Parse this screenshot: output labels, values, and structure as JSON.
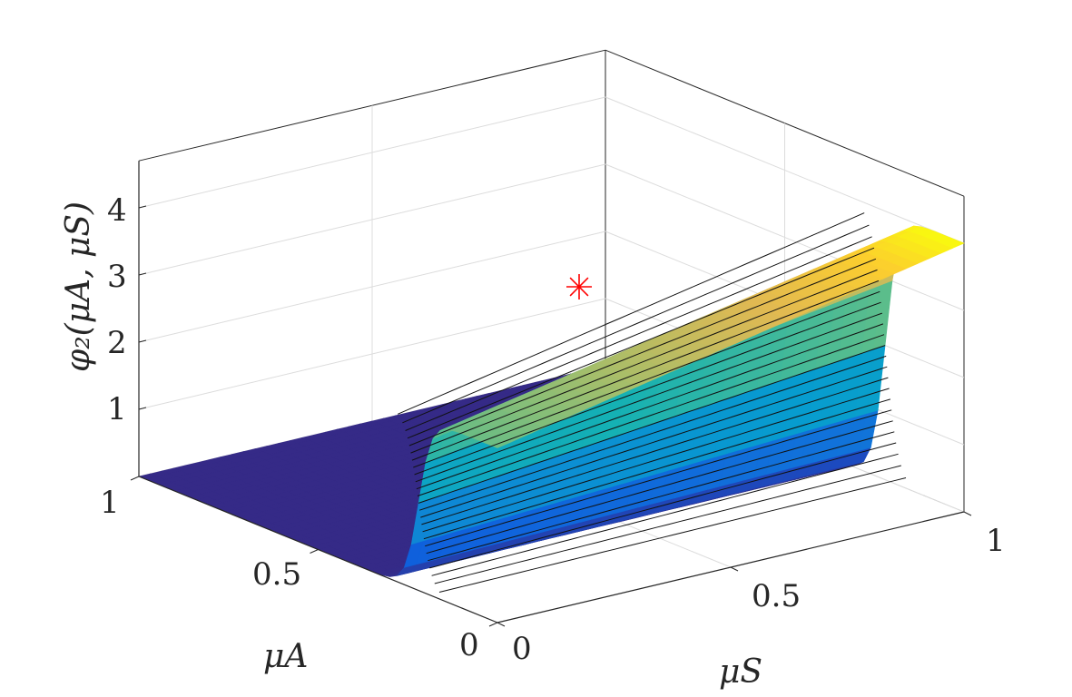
{
  "chart_data": {
    "type": "surface",
    "title": "",
    "zlabel": "φ₂(μA, μS)",
    "xlabel": "μS",
    "ylabel": "μA",
    "x_ticks": [
      "0",
      "0.5",
      "1"
    ],
    "y_ticks": [
      "0",
      "0.5",
      "1"
    ],
    "z_ticks": [
      "1",
      "2",
      "3",
      "4"
    ],
    "xlim": [
      0,
      1
    ],
    "ylim": [
      0,
      1
    ],
    "zlim": [
      0,
      4.7
    ],
    "grid": true,
    "colormap": "parula",
    "surface": {
      "step_location_muA": 0.22,
      "low_plateau_value": 0.0,
      "high_plateau_value_at_muS0": 2.6,
      "high_plateau_value_at_muS1": 4.0
    },
    "marker": {
      "symbol": "asterisk",
      "color": "#ff0000",
      "muA": 0.0,
      "muS": 0.0,
      "value": 2.95
    }
  }
}
